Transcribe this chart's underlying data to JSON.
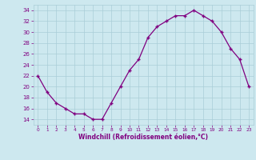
{
  "x": [
    0,
    1,
    2,
    3,
    4,
    5,
    6,
    7,
    8,
    9,
    10,
    11,
    12,
    13,
    14,
    15,
    16,
    17,
    18,
    19,
    20,
    21,
    22,
    23
  ],
  "y": [
    22,
    19,
    17,
    16,
    15,
    15,
    14,
    14,
    17,
    20,
    23,
    25,
    29,
    31,
    32,
    33,
    33,
    34,
    33,
    32,
    30,
    27,
    25,
    20
  ],
  "line_color": "#800080",
  "marker": "+",
  "bg_color": "#cde8ef",
  "grid_color": "#aacdd8",
  "xlabel": "Windchill (Refroidissement éolien,°C)",
  "xlabel_color": "#800080",
  "tick_color": "#800080",
  "ylim": [
    13,
    35
  ],
  "yticks": [
    14,
    16,
    18,
    20,
    22,
    24,
    26,
    28,
    30,
    32,
    34
  ],
  "xlim": [
    -0.5,
    23.5
  ],
  "xticks": [
    0,
    1,
    2,
    3,
    4,
    5,
    6,
    7,
    8,
    9,
    10,
    11,
    12,
    13,
    14,
    15,
    16,
    17,
    18,
    19,
    20,
    21,
    22,
    23
  ]
}
